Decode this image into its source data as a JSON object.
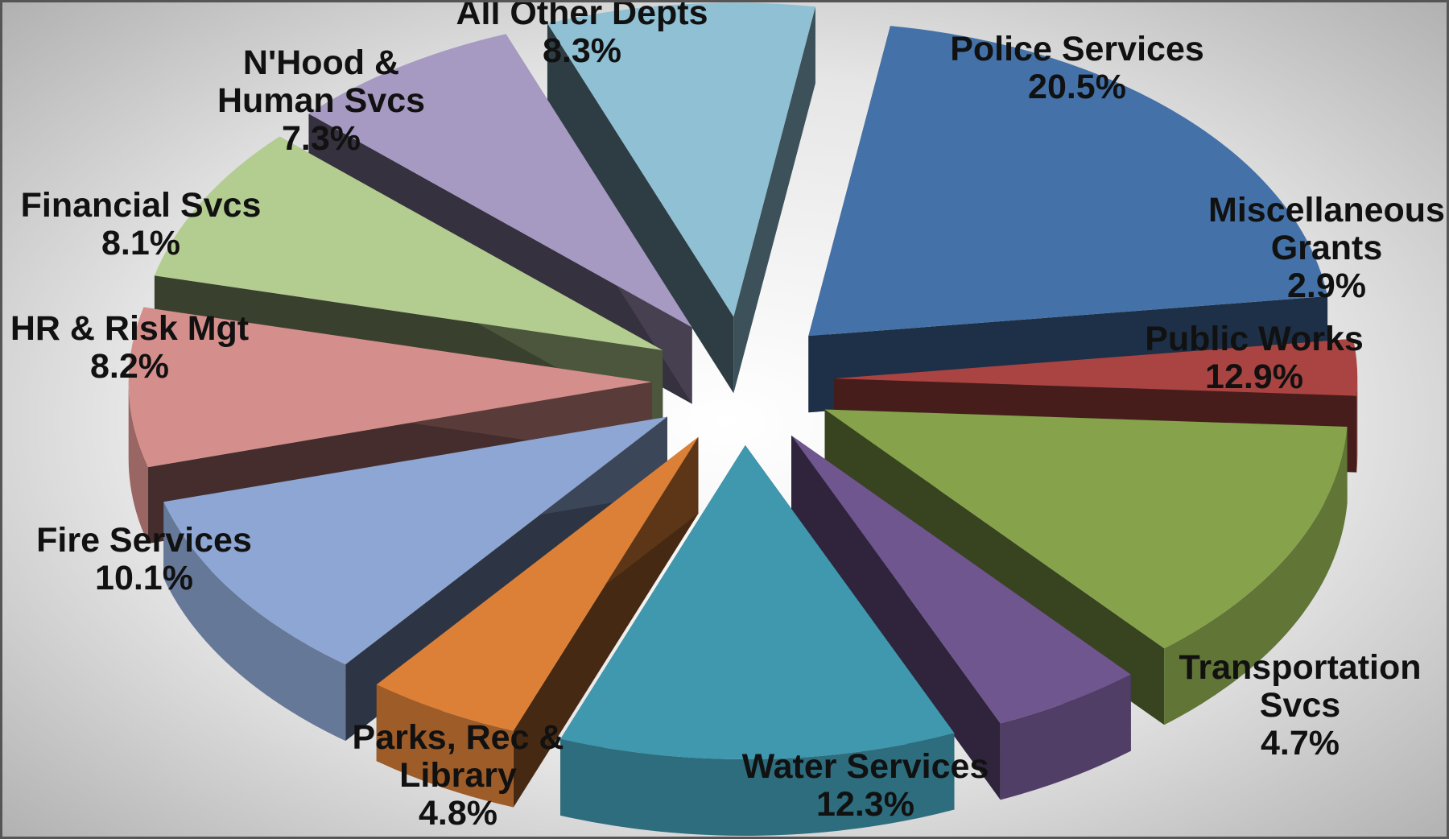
{
  "chart_data": {
    "type": "pie",
    "style": "3d-exploded",
    "slices": [
      {
        "label_lines": [
          "Police Services"
        ],
        "pct_text": "20.5%",
        "value": 20.5,
        "color": "#4472A8"
      },
      {
        "label_lines": [
          "Miscellaneous",
          "Grants"
        ],
        "pct_text": "2.9%",
        "value": 2.9,
        "color": "#A94442"
      },
      {
        "label_lines": [
          "Public Works"
        ],
        "pct_text": "12.9%",
        "value": 12.9,
        "color": "#86A34B"
      },
      {
        "label_lines": [
          "Transportation",
          "Svcs"
        ],
        "pct_text": "4.7%",
        "value": 4.7,
        "color": "#70568E"
      },
      {
        "label_lines": [
          "Water Services"
        ],
        "pct_text": "12.3%",
        "value": 12.3,
        "color": "#3F98AE"
      },
      {
        "label_lines": [
          "Parks, Rec &",
          "Library"
        ],
        "pct_text": "4.8%",
        "value": 4.8,
        "color": "#DC8037"
      },
      {
        "label_lines": [
          "Fire Services"
        ],
        "pct_text": "10.1%",
        "value": 10.1,
        "color": "#8EA6D3"
      },
      {
        "label_lines": [
          "HR & Risk Mgt"
        ],
        "pct_text": "8.2%",
        "value": 8.2,
        "color": "#D48E8B"
      },
      {
        "label_lines": [
          "Financial Svcs"
        ],
        "pct_text": "8.1%",
        "value": 8.1,
        "color": "#B3CC90"
      },
      {
        "label_lines": [
          "N'Hood &",
          "Human Svcs"
        ],
        "pct_text": "7.3%",
        "value": 7.3,
        "color": "#A699C2"
      },
      {
        "label_lines": [
          "All Other Depts"
        ],
        "pct_text": "8.3%",
        "value": 8.3,
        "color": "#8FC0D3"
      }
    ]
  }
}
